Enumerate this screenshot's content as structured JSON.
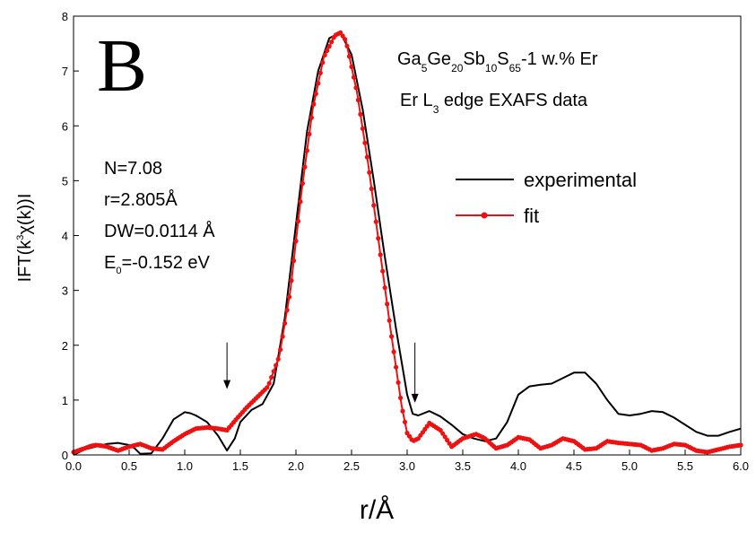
{
  "chart_data": {
    "type": "line",
    "panel_label": "B",
    "title_lines": [
      "Ga5Ge20Sb10S65-1 w.% Er",
      "Er L3 edge EXAFS data"
    ],
    "xlabel": "r/Å",
    "ylabel": "IFT(k3χ(k))I",
    "xlim": [
      0.0,
      6.0
    ],
    "ylim": [
      0,
      8
    ],
    "xticks": [
      0.0,
      0.5,
      1.0,
      1.5,
      2.0,
      2.5,
      3.0,
      3.5,
      4.0,
      4.5,
      5.0,
      5.5,
      6.0
    ],
    "xtick_labels": [
      "0.0",
      "0.5",
      "1.0",
      "1.5",
      "2.0",
      "2.5",
      "3.0",
      "3.5",
      "4.0",
      "4.5",
      "5.0",
      "5.5",
      "6.0"
    ],
    "yticks": [
      0,
      1,
      2,
      3,
      4,
      5,
      6,
      7,
      8
    ],
    "ytick_labels": [
      "0",
      "1",
      "2",
      "3",
      "4",
      "5",
      "6",
      "7",
      "8"
    ],
    "grid": false,
    "legend_position": "right",
    "fit_params": [
      "N=7.08",
      "r=2.805Å",
      "DW=0.0114 Å",
      "E0=-0.152 eV"
    ],
    "arrows": [
      {
        "x": 1.38,
        "y_top": 2.05,
        "y_tip": 1.2
      },
      {
        "x": 3.07,
        "y_top": 2.05,
        "y_tip": 0.95
      }
    ],
    "series": [
      {
        "name": "experimental",
        "color": "#000000",
        "style": "line",
        "x": [
          0.0,
          0.1,
          0.2,
          0.3,
          0.4,
          0.5,
          0.55,
          0.6,
          0.7,
          0.8,
          0.9,
          1.0,
          1.05,
          1.1,
          1.2,
          1.3,
          1.38,
          1.45,
          1.5,
          1.6,
          1.7,
          1.8,
          1.9,
          2.0,
          2.1,
          2.2,
          2.3,
          2.4,
          2.5,
          2.6,
          2.7,
          2.8,
          2.9,
          3.0,
          3.05,
          3.1,
          3.2,
          3.3,
          3.4,
          3.5,
          3.6,
          3.7,
          3.8,
          3.9,
          4.0,
          4.1,
          4.2,
          4.3,
          4.4,
          4.5,
          4.6,
          4.7,
          4.8,
          4.9,
          5.0,
          5.1,
          5.2,
          5.3,
          5.4,
          5.5,
          5.6,
          5.7,
          5.8,
          5.9,
          6.0
        ],
        "y": [
          0.0,
          0.1,
          0.15,
          0.2,
          0.22,
          0.18,
          0.12,
          0.02,
          0.03,
          0.3,
          0.65,
          0.78,
          0.76,
          0.72,
          0.6,
          0.35,
          0.08,
          0.3,
          0.6,
          0.82,
          0.93,
          1.3,
          2.5,
          4.2,
          5.9,
          7.0,
          7.6,
          7.7,
          7.3,
          6.3,
          5.0,
          3.6,
          2.3,
          1.1,
          0.75,
          0.72,
          0.8,
          0.7,
          0.55,
          0.38,
          0.3,
          0.25,
          0.3,
          0.6,
          1.1,
          1.25,
          1.28,
          1.3,
          1.4,
          1.5,
          1.5,
          1.3,
          1.0,
          0.75,
          0.72,
          0.75,
          0.8,
          0.78,
          0.68,
          0.55,
          0.42,
          0.35,
          0.35,
          0.42,
          0.48
        ]
      },
      {
        "name": "fit",
        "color": "#ee1111",
        "style": "dotted-markers",
        "x": [
          0.0,
          0.1,
          0.15,
          0.2,
          0.25,
          0.3,
          0.4,
          0.5,
          0.6,
          0.7,
          0.8,
          0.9,
          1.0,
          1.1,
          1.2,
          1.3,
          1.38,
          1.45,
          1.55,
          1.65,
          1.75,
          1.85,
          1.95,
          2.05,
          2.15,
          2.25,
          2.35,
          2.4,
          2.45,
          2.55,
          2.65,
          2.75,
          2.85,
          2.95,
          3.0,
          3.05,
          3.1,
          3.2,
          3.3,
          3.4,
          3.5,
          3.62,
          3.7,
          3.8,
          3.9,
          4.0,
          4.1,
          4.2,
          4.3,
          4.4,
          4.5,
          4.6,
          4.7,
          4.8,
          4.9,
          5.0,
          5.1,
          5.2,
          5.3,
          5.4,
          5.5,
          5.6,
          5.7,
          5.8,
          5.9,
          6.0
        ],
        "y": [
          0.05,
          0.12,
          0.16,
          0.18,
          0.17,
          0.15,
          0.08,
          0.15,
          0.2,
          0.12,
          0.1,
          0.25,
          0.38,
          0.48,
          0.5,
          0.48,
          0.45,
          0.62,
          0.85,
          1.05,
          1.25,
          1.8,
          3.0,
          4.8,
          6.3,
          7.25,
          7.65,
          7.7,
          7.55,
          6.6,
          5.3,
          3.8,
          2.3,
          0.9,
          0.4,
          0.25,
          0.3,
          0.58,
          0.45,
          0.15,
          0.3,
          0.38,
          0.3,
          0.12,
          0.18,
          0.32,
          0.28,
          0.12,
          0.18,
          0.3,
          0.25,
          0.1,
          0.12,
          0.25,
          0.22,
          0.2,
          0.18,
          0.08,
          0.12,
          0.2,
          0.18,
          0.08,
          0.05,
          0.1,
          0.15,
          0.18
        ]
      }
    ]
  }
}
